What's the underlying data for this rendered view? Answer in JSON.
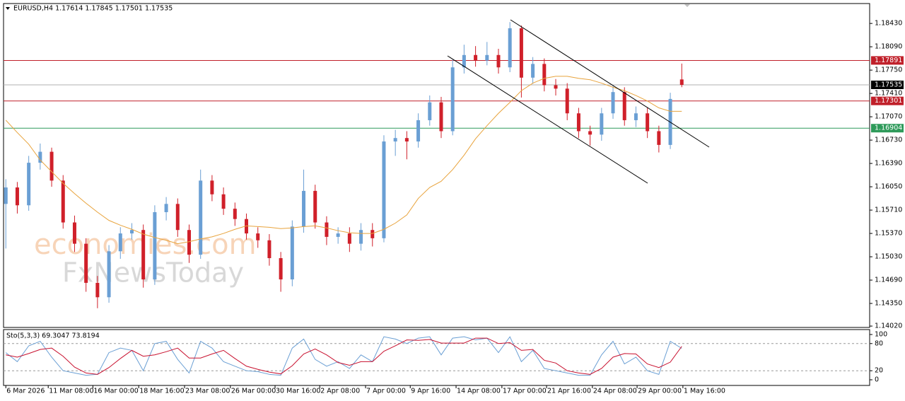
{
  "chart_data": [
    {
      "type": "candlestick",
      "title": "EURUSD,H4  1.17614 1.17845 1.17501 1.17535",
      "up_color": "#6a9fd4",
      "down_color": "#d0202a",
      "open": [
        1.158,
        1.1604,
        1.1578,
        1.164,
        1.1656,
        1.1614,
        1.1553,
        1.1522,
        1.1465,
        1.1444,
        1.1511,
        1.1537,
        1.1542,
        1.147,
        1.1568,
        1.158,
        1.1542,
        1.1506,
        1.1614,
        1.1594,
        1.1573,
        1.1558,
        1.1537,
        1.1527,
        1.1501,
        1.147,
        1.1547,
        1.1599,
        1.1553,
        1.1532,
        1.1537,
        1.1522,
        1.1542,
        1.153,
        1.1671,
        1.1676,
        1.1671,
        1.1702,
        1.1728,
        1.1686,
        1.1779,
        1.1797,
        1.1789,
        1.1797,
        1.1779,
        1.1836,
        1.1764,
        1.1784,
        1.1753,
        1.1748,
        1.1712,
        1.1686,
        1.1681,
        1.1712,
        1.1743,
        1.1702,
        1.1712,
        1.1686,
        1.1666,
        1.17614
      ],
      "high": [
        1.1616,
        1.1612,
        1.165,
        1.1668,
        1.1662,
        1.1622,
        1.1563,
        1.153,
        1.1475,
        1.152,
        1.1546,
        1.1552,
        1.155,
        1.1578,
        1.159,
        1.1588,
        1.155,
        1.163,
        1.1622,
        1.1604,
        1.1582,
        1.1566,
        1.1546,
        1.1536,
        1.151,
        1.1556,
        1.163,
        1.1608,
        1.1562,
        1.1546,
        1.1546,
        1.1552,
        1.1552,
        1.168,
        1.1688,
        1.1686,
        1.1712,
        1.1738,
        1.1736,
        1.179,
        1.1812,
        1.181,
        1.1816,
        1.1806,
        1.1845,
        1.184,
        1.1794,
        1.1792,
        1.1762,
        1.1756,
        1.172,
        1.1694,
        1.172,
        1.1752,
        1.175,
        1.1722,
        1.172,
        1.1694,
        1.1742,
        1.17845
      ],
      "low": [
        1.1515,
        1.1566,
        1.157,
        1.163,
        1.1605,
        1.1544,
        1.151,
        1.1452,
        1.1428,
        1.1436,
        1.15,
        1.1528,
        1.1458,
        1.1462,
        1.1556,
        1.1532,
        1.1494,
        1.15,
        1.1584,
        1.1564,
        1.1548,
        1.1528,
        1.1516,
        1.149,
        1.1452,
        1.146,
        1.1538,
        1.1544,
        1.152,
        1.1522,
        1.151,
        1.1512,
        1.1518,
        1.1524,
        1.165,
        1.1645,
        1.1662,
        1.1694,
        1.1676,
        1.168,
        1.177,
        1.178,
        1.1782,
        1.177,
        1.1772,
        1.1735,
        1.1755,
        1.1744,
        1.1738,
        1.1702,
        1.1676,
        1.1665,
        1.1672,
        1.1704,
        1.1694,
        1.1692,
        1.1676,
        1.1655,
        1.166,
        1.17501
      ],
      "close": [
        1.1604,
        1.1578,
        1.164,
        1.1656,
        1.1614,
        1.1553,
        1.1522,
        1.1465,
        1.1444,
        1.1511,
        1.1537,
        1.1542,
        1.147,
        1.1568,
        1.158,
        1.1542,
        1.1506,
        1.1614,
        1.1594,
        1.1573,
        1.1558,
        1.1537,
        1.1527,
        1.1501,
        1.147,
        1.1547,
        1.1599,
        1.1553,
        1.1532,
        1.1537,
        1.1522,
        1.1542,
        1.153,
        1.1671,
        1.1676,
        1.1671,
        1.1702,
        1.1728,
        1.1686,
        1.1779,
        1.1797,
        1.1789,
        1.1797,
        1.1779,
        1.1836,
        1.1764,
        1.1784,
        1.1753,
        1.1748,
        1.1712,
        1.1686,
        1.1681,
        1.1712,
        1.1743,
        1.1702,
        1.1712,
        1.1686,
        1.1666,
        1.1733,
        1.17535
      ],
      "ma": {
        "color": "#e8a33c",
        "values": [
          1.1702,
          1.1684,
          1.1667,
          1.1644,
          1.1627,
          1.161,
          1.1595,
          1.1581,
          1.1568,
          1.1556,
          1.1549,
          1.1543,
          1.1536,
          1.1531,
          1.1527,
          1.1522,
          1.1525,
          1.1529,
          1.1532,
          1.1537,
          1.1543,
          1.1548,
          1.1547,
          1.1546,
          1.1544,
          1.1545,
          1.1547,
          1.1548,
          1.1545,
          1.1541,
          1.1538,
          1.1537,
          1.1537,
          1.1543,
          1.1552,
          1.1564,
          1.1588,
          1.1604,
          1.1613,
          1.163,
          1.1651,
          1.1675,
          1.1694,
          1.1712,
          1.1728,
          1.1745,
          1.1756,
          1.1763,
          1.1766,
          1.1766,
          1.1763,
          1.1761,
          1.1756,
          1.175,
          1.1745,
          1.1738,
          1.173,
          1.172,
          1.1715,
          1.1715
        ]
      },
      "levels": [
        {
          "value": 1.17891,
          "color": "#c0202a",
          "label_bg": "#c0202a",
          "label_color": "#ffffff"
        },
        {
          "value": 1.17535,
          "color": "#b0b0b0",
          "label_bg": "#000000",
          "label_color": "#ffffff"
        },
        {
          "value": 1.17301,
          "color": "#c0202a",
          "label_bg": "#c0202a",
          "label_color": "#ffffff"
        },
        {
          "value": 1.16904,
          "color": "#2e9a5a",
          "label_bg": "#2e9a5a",
          "label_color": "#ffffff"
        }
      ],
      "xlim": [
        -0.2,
        75.4
      ],
      "ylim": [
        1.14,
        1.1872
      ],
      "yticks": [
        {
          "value": 1.1843,
          "label": "1.18430"
        },
        {
          "value": 1.1809,
          "label": "1.18090"
        },
        {
          "value": 1.1775,
          "label": "1.17750"
        },
        {
          "value": 1.1741,
          "label": "1.17410"
        },
        {
          "value": 1.1707,
          "label": "1.17070"
        },
        {
          "value": 1.1673,
          "label": "1.16730"
        },
        {
          "value": 1.1639,
          "label": "1.16390"
        },
        {
          "value": 1.1605,
          "label": "1.16050"
        },
        {
          "value": 1.1571,
          "label": "1.15710"
        },
        {
          "value": 1.1537,
          "label": "1.15370"
        },
        {
          "value": 1.1503,
          "label": "1.15030"
        },
        {
          "value": 1.1469,
          "label": "1.14690"
        },
        {
          "value": 1.1435,
          "label": "1.14350"
        },
        {
          "value": 1.1402,
          "label": "1.14020"
        }
      ],
      "xticks": [
        {
          "value": 0,
          "label": "6 Mar 2026"
        },
        {
          "value": 3.7,
          "label": "11 Mar 08:00"
        },
        {
          "value": 7.6,
          "label": "16 Mar 00:00"
        },
        {
          "value": 11.6,
          "label": "18 Mar 16:00"
        },
        {
          "value": 15.6,
          "label": "23 Mar 08:00"
        },
        {
          "value": 19.6,
          "label": "26 Mar 00:00"
        },
        {
          "value": 23.5,
          "label": "30 Mar 16:00"
        },
        {
          "value": 27.4,
          "label": "2 Apr 08:00"
        },
        {
          "value": 31.4,
          "label": "7 Apr 00:00"
        },
        {
          "value": 35.3,
          "label": "9 Apr 16:00"
        },
        {
          "value": 39.3,
          "label": "14 Apr 08:00"
        },
        {
          "value": 43.3,
          "label": "17 Apr 00:00"
        },
        {
          "value": 47.2,
          "label": "21 Apr 16:00"
        },
        {
          "value": 51.2,
          "label": "24 Apr 08:00"
        },
        {
          "value": 55.1,
          "label": "29 Apr 00:00"
        },
        {
          "value": 59.1,
          "label": "1 May 16:00"
        }
      ],
      "watermarks": [
        "economies.com",
        "FxNewsToday"
      ]
    },
    {
      "type": "line",
      "title": "Sto(5,3,3) 69.3047 73.8194",
      "ylim": [
        -12.5,
        110.9
      ],
      "yticks": [
        0,
        20,
        80,
        100
      ],
      "dashed_levels": [
        20,
        80
      ],
      "series": [
        {
          "color": "#6a9fd4",
          "values": [
            60,
            40,
            75,
            85,
            50,
            20,
            15,
            10,
            12,
            60,
            70,
            65,
            20,
            80,
            85,
            45,
            15,
            85,
            70,
            40,
            30,
            20,
            18,
            12,
            10,
            70,
            90,
            45,
            30,
            40,
            25,
            55,
            40,
            95,
            90,
            80,
            92,
            95,
            55,
            92,
            95,
            88,
            92,
            60,
            95,
            40,
            65,
            25,
            20,
            15,
            10,
            10,
            55,
            85,
            35,
            50,
            20,
            12,
            85,
            69.3047
          ]
        },
        {
          "color": "#c8102e",
          "values": [
            55,
            50,
            58,
            67,
            70,
            52,
            28,
            15,
            12,
            27,
            47,
            65,
            52,
            55,
            62,
            70,
            48,
            48,
            57,
            65,
            47,
            30,
            23,
            17,
            13,
            31,
            57,
            68,
            55,
            38,
            32,
            40,
            40,
            63,
            75,
            88,
            87,
            89,
            81,
            81,
            81,
            92,
            92,
            80,
            82,
            65,
            67,
            43,
            37,
            20,
            15,
            12,
            25,
            50,
            58,
            57,
            35,
            27,
            39,
            73.8194
          ]
        }
      ]
    }
  ]
}
